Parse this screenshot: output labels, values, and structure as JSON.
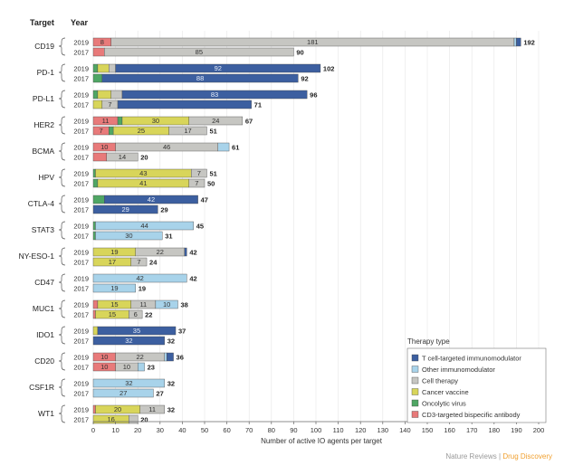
{
  "chart_data": {
    "type": "bar",
    "orientation": "horizontal",
    "stacked": true,
    "header": {
      "target": "Target",
      "year": "Year"
    },
    "xlabel": "Number of active IO agents per target",
    "xlim": [
      0,
      200
    ],
    "xticks": [
      0,
      10,
      20,
      30,
      40,
      50,
      60,
      70,
      80,
      90,
      100,
      110,
      120,
      130,
      140,
      150,
      160,
      170,
      180,
      190,
      200
    ],
    "series": [
      {
        "key": "tcell",
        "name": "T cell-targeted immunomodulator",
        "color": "#3c5fa0"
      },
      {
        "key": "other",
        "name": "Other immunomodulator",
        "color": "#a8d3ea"
      },
      {
        "key": "cell",
        "name": "Cell therapy",
        "color": "#c6c6c2"
      },
      {
        "key": "vaccine",
        "name": "Cancer vaccine",
        "color": "#d8d55a"
      },
      {
        "key": "virus",
        "name": "Oncolytic virus",
        "color": "#4fa664"
      },
      {
        "key": "cd3",
        "name": "CD3-targeted bispecific antibody",
        "color": "#e87a7a"
      }
    ],
    "legend_title": "Therapy type",
    "groups": [
      {
        "target": "CD19",
        "bars": [
          {
            "year": "2019",
            "total": "192",
            "segs": [
              {
                "s": "cd3",
                "v": 8,
                "label": "8"
              },
              {
                "s": "cell",
                "v": 181,
                "label": "181"
              },
              {
                "s": "other",
                "v": 1
              },
              {
                "s": "tcell",
                "v": 2
              }
            ]
          },
          {
            "year": "2017",
            "total": "90",
            "segs": [
              {
                "s": "cd3",
                "v": 5
              },
              {
                "s": "cell",
                "v": 85,
                "label": "85"
              }
            ]
          }
        ]
      },
      {
        "target": "PD-1",
        "bars": [
          {
            "year": "2019",
            "total": "102",
            "segs": [
              {
                "s": "virus",
                "v": 2
              },
              {
                "s": "vaccine",
                "v": 5
              },
              {
                "s": "cell",
                "v": 3
              },
              {
                "s": "tcell",
                "v": 92,
                "label": "92"
              }
            ]
          },
          {
            "year": "2017",
            "total": "92",
            "segs": [
              {
                "s": "virus",
                "v": 4
              },
              {
                "s": "tcell",
                "v": 88,
                "label": "88"
              }
            ]
          }
        ]
      },
      {
        "target": "PD-L1",
        "bars": [
          {
            "year": "2019",
            "total": "96",
            "segs": [
              {
                "s": "virus",
                "v": 2
              },
              {
                "s": "vaccine",
                "v": 6
              },
              {
                "s": "cell",
                "v": 5
              },
              {
                "s": "tcell",
                "v": 83,
                "label": "83"
              }
            ]
          },
          {
            "year": "2017",
            "total": "71",
            "segs": [
              {
                "s": "vaccine",
                "v": 4
              },
              {
                "s": "cell",
                "v": 7,
                "label": "7"
              },
              {
                "s": "tcell",
                "v": 60
              }
            ]
          }
        ]
      },
      {
        "target": "HER2",
        "bars": [
          {
            "year": "2019",
            "total": "67",
            "segs": [
              {
                "s": "cd3",
                "v": 11,
                "label": "11"
              },
              {
                "s": "virus",
                "v": 2
              },
              {
                "s": "vaccine",
                "v": 30,
                "label": "30"
              },
              {
                "s": "cell",
                "v": 24,
                "label": "24"
              }
            ]
          },
          {
            "year": "2017",
            "total": "51",
            "segs": [
              {
                "s": "cd3",
                "v": 7,
                "label": "7"
              },
              {
                "s": "virus",
                "v": 2
              },
              {
                "s": "vaccine",
                "v": 25,
                "label": "25"
              },
              {
                "s": "cell",
                "v": 17,
                "label": "17"
              }
            ]
          }
        ]
      },
      {
        "target": "BCMA",
        "bars": [
          {
            "year": "2019",
            "total": "61",
            "segs": [
              {
                "s": "cd3",
                "v": 10,
                "label": "10"
              },
              {
                "s": "cell",
                "v": 46,
                "label": "46"
              },
              {
                "s": "other",
                "v": 5
              }
            ]
          },
          {
            "year": "2017",
            "total": "20",
            "segs": [
              {
                "s": "cd3",
                "v": 6
              },
              {
                "s": "cell",
                "v": 14,
                "label": "14"
              }
            ]
          }
        ]
      },
      {
        "target": "HPV",
        "bars": [
          {
            "year": "2019",
            "total": "51",
            "segs": [
              {
                "s": "virus",
                "v": 1
              },
              {
                "s": "vaccine",
                "v": 43,
                "label": "43"
              },
              {
                "s": "cell",
                "v": 7,
                "label": "7"
              }
            ]
          },
          {
            "year": "2017",
            "total": "50",
            "segs": [
              {
                "s": "virus",
                "v": 2
              },
              {
                "s": "vaccine",
                "v": 41,
                "label": "41"
              },
              {
                "s": "cell",
                "v": 7,
                "label": "7"
              }
            ]
          }
        ]
      },
      {
        "target": "CTLA-4",
        "bars": [
          {
            "year": "2019",
            "total": "47",
            "segs": [
              {
                "s": "virus",
                "v": 5
              },
              {
                "s": "tcell",
                "v": 42,
                "label": "42"
              }
            ]
          },
          {
            "year": "2017",
            "total": "29",
            "segs": [
              {
                "s": "tcell",
                "v": 29,
                "label": "29"
              }
            ]
          }
        ]
      },
      {
        "target": "STAT3",
        "bars": [
          {
            "year": "2019",
            "total": "45",
            "segs": [
              {
                "s": "virus",
                "v": 1
              },
              {
                "s": "other",
                "v": 44,
                "label": "44"
              }
            ]
          },
          {
            "year": "2017",
            "total": "31",
            "segs": [
              {
                "s": "virus",
                "v": 1
              },
              {
                "s": "other",
                "v": 30,
                "label": "30"
              }
            ]
          }
        ]
      },
      {
        "target": "NY-ESO-1",
        "bars": [
          {
            "year": "2019",
            "total": "42",
            "segs": [
              {
                "s": "vaccine",
                "v": 19,
                "label": "19"
              },
              {
                "s": "cell",
                "v": 22,
                "label": "22"
              },
              {
                "s": "tcell",
                "v": 1
              }
            ]
          },
          {
            "year": "2017",
            "total": "24",
            "segs": [
              {
                "s": "vaccine",
                "v": 17,
                "label": "17"
              },
              {
                "s": "cell",
                "v": 7,
                "label": "7"
              }
            ]
          }
        ]
      },
      {
        "target": "CD47",
        "bars": [
          {
            "year": "2019",
            "total": "42",
            "segs": [
              {
                "s": "other",
                "v": 42,
                "label": "42"
              }
            ]
          },
          {
            "year": "2017",
            "total": "19",
            "segs": [
              {
                "s": "other",
                "v": 19,
                "label": "19"
              }
            ]
          }
        ]
      },
      {
        "target": "MUC1",
        "bars": [
          {
            "year": "2019",
            "total": "38",
            "segs": [
              {
                "s": "cd3",
                "v": 2
              },
              {
                "s": "vaccine",
                "v": 15,
                "label": "15"
              },
              {
                "s": "cell",
                "v": 11,
                "label": "11"
              },
              {
                "s": "other",
                "v": 10,
                "label": "10"
              }
            ]
          },
          {
            "year": "2017",
            "total": "22",
            "segs": [
              {
                "s": "cd3",
                "v": 1
              },
              {
                "s": "vaccine",
                "v": 15,
                "label": "15"
              },
              {
                "s": "cell",
                "v": 6,
                "label": "6"
              }
            ]
          }
        ]
      },
      {
        "target": "IDO1",
        "bars": [
          {
            "year": "2019",
            "total": "37",
            "segs": [
              {
                "s": "vaccine",
                "v": 2
              },
              {
                "s": "tcell",
                "v": 35,
                "label": "35"
              }
            ]
          },
          {
            "year": "2017",
            "total": "32",
            "segs": [
              {
                "s": "tcell",
                "v": 32,
                "label": "32"
              }
            ]
          }
        ]
      },
      {
        "target": "CD20",
        "bars": [
          {
            "year": "2019",
            "total": "36",
            "segs": [
              {
                "s": "cd3",
                "v": 10,
                "label": "10"
              },
              {
                "s": "cell",
                "v": 22,
                "label": "22"
              },
              {
                "s": "other",
                "v": 1
              },
              {
                "s": "tcell",
                "v": 3
              }
            ]
          },
          {
            "year": "2017",
            "total": "23",
            "segs": [
              {
                "s": "cd3",
                "v": 10,
                "label": "10"
              },
              {
                "s": "cell",
                "v": 10,
                "label": "10"
              },
              {
                "s": "other",
                "v": 3
              }
            ]
          }
        ]
      },
      {
        "target": "CSF1R",
        "bars": [
          {
            "year": "2019",
            "total": "32",
            "segs": [
              {
                "s": "other",
                "v": 32,
                "label": "32"
              }
            ]
          },
          {
            "year": "2017",
            "total": "27",
            "segs": [
              {
                "s": "other",
                "v": 27,
                "label": "27"
              }
            ]
          }
        ]
      },
      {
        "target": "WT1",
        "bars": [
          {
            "year": "2019",
            "total": "32",
            "segs": [
              {
                "s": "cd3",
                "v": 1
              },
              {
                "s": "vaccine",
                "v": 20,
                "label": "20"
              },
              {
                "s": "cell",
                "v": 11,
                "label": "11"
              }
            ]
          },
          {
            "year": "2017",
            "total": "20",
            "segs": [
              {
                "s": "vaccine",
                "v": 16,
                "label": "16"
              },
              {
                "s": "cell",
                "v": 4
              }
            ]
          }
        ]
      }
    ]
  },
  "source": {
    "journal": "Nature Reviews",
    "separator": " | ",
    "section": "Drug Discovery",
    "journal_color": "#999999",
    "section_color": "#f0a030"
  }
}
